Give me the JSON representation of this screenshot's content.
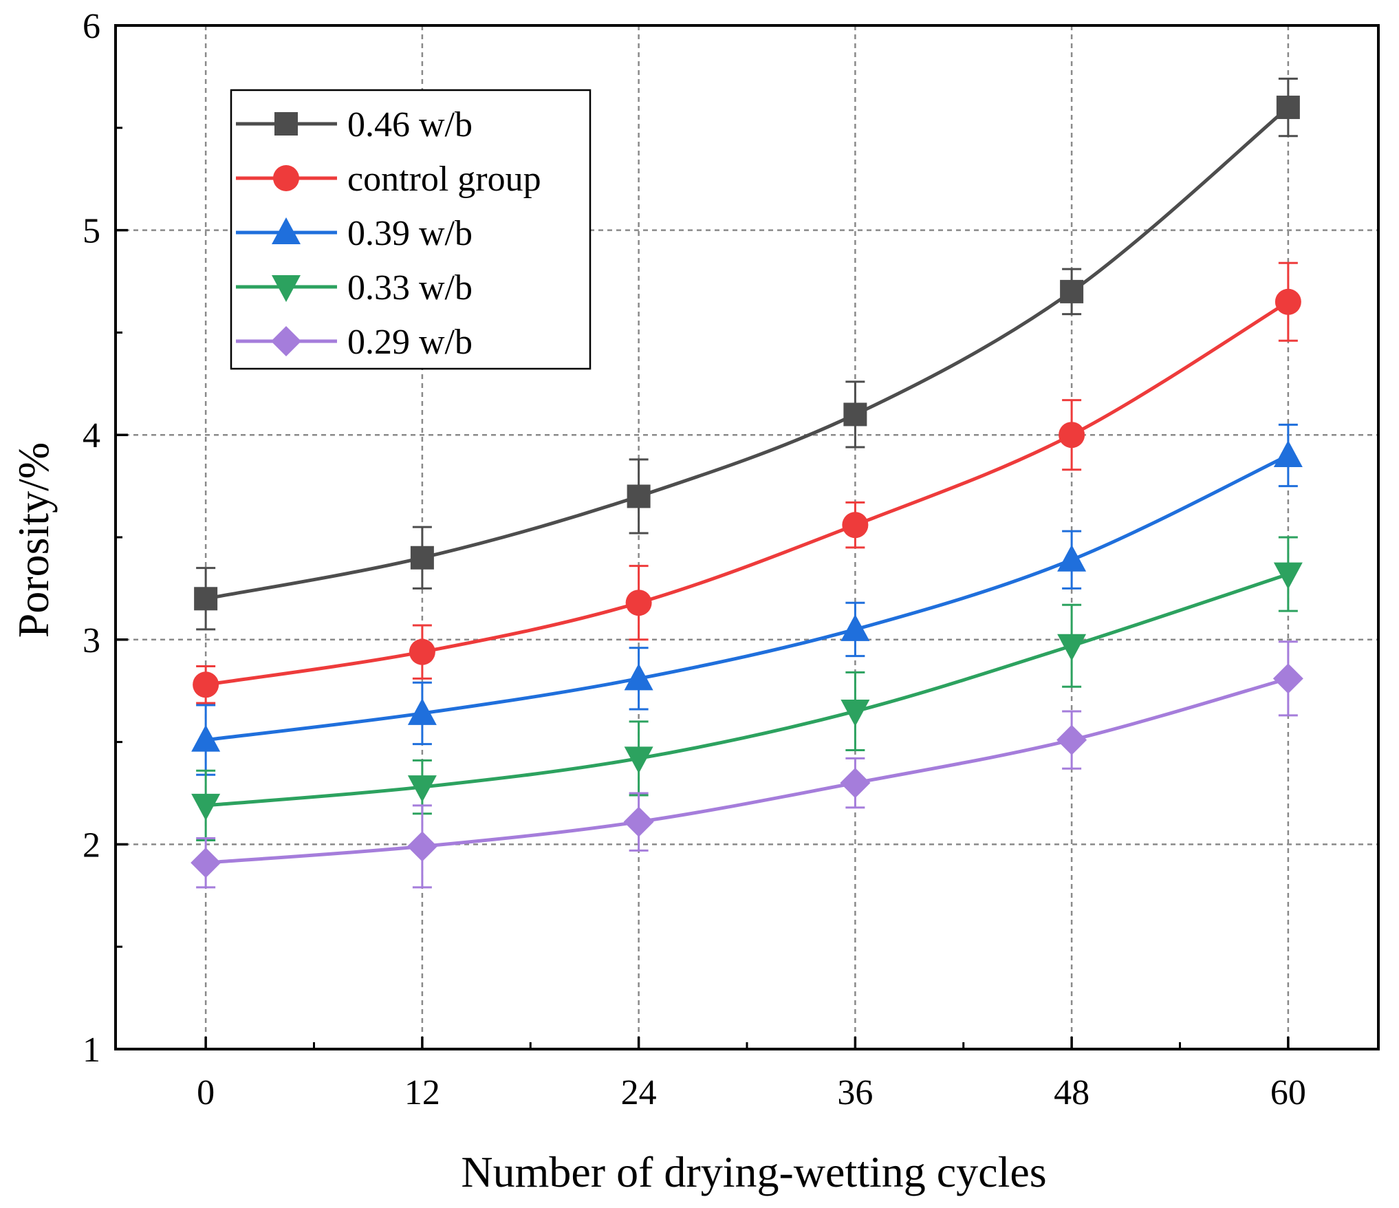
{
  "chart_data": {
    "type": "line",
    "title": "",
    "xlabel": "Number of drying-wetting cycles",
    "ylabel": "Porosity/%",
    "x": [
      0,
      12,
      24,
      36,
      48,
      60
    ],
    "x_tick_labels": [
      "0",
      "12",
      "24",
      "36",
      "48",
      "60"
    ],
    "y_tick_labels": [
      "1",
      "2",
      "3",
      "4",
      "5",
      "6"
    ],
    "xlim": [
      -5,
      65
    ],
    "ylim": [
      1,
      6
    ],
    "grid": true,
    "legend_position": "top-left",
    "series": [
      {
        "name": "0.46 w/b",
        "color": "#4d4d4d",
        "marker": "square",
        "values": [
          3.2,
          3.4,
          3.7,
          4.1,
          4.7,
          5.6
        ],
        "errors": [
          0.15,
          0.15,
          0.18,
          0.16,
          0.11,
          0.14
        ]
      },
      {
        "name": "control group",
        "color": "#ee3b3b",
        "marker": "circle",
        "values": [
          2.78,
          2.94,
          3.18,
          3.56,
          4.0,
          4.65
        ],
        "errors": [
          0.09,
          0.13,
          0.18,
          0.11,
          0.17,
          0.19
        ]
      },
      {
        "name": "0.39 w/b",
        "color": "#1f6fdc",
        "marker": "triangle-up",
        "values": [
          2.51,
          2.64,
          2.81,
          3.05,
          3.39,
          3.9
        ],
        "errors": [
          0.17,
          0.15,
          0.15,
          0.13,
          0.14,
          0.15
        ]
      },
      {
        "name": "0.33 w/b",
        "color": "#2ca25f",
        "marker": "triangle-down",
        "values": [
          2.19,
          2.28,
          2.42,
          2.65,
          2.97,
          3.32
        ],
        "errors": [
          0.17,
          0.13,
          0.18,
          0.19,
          0.2,
          0.18
        ]
      },
      {
        "name": "0.29 w/b",
        "color": "#a57ddb",
        "marker": "diamond",
        "values": [
          1.91,
          1.99,
          2.11,
          2.3,
          2.51,
          2.81
        ],
        "errors": [
          0.12,
          0.2,
          0.14,
          0.12,
          0.14,
          0.18
        ]
      }
    ]
  }
}
